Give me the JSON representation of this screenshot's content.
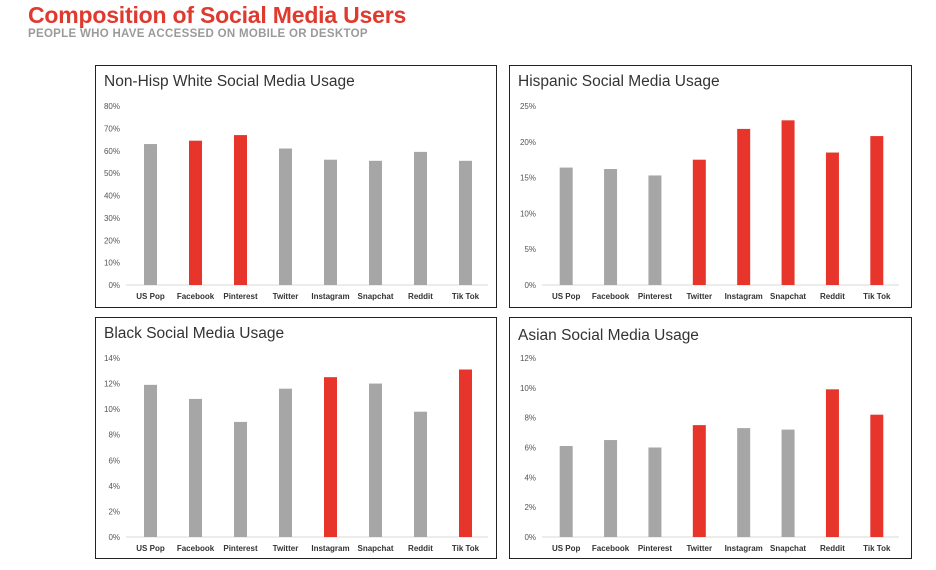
{
  "header": {
    "title": "Composition of Social Media Users",
    "subtitle": "PEOPLE WHO HAVE ACCESSED ON MOBILE OR DESKTOP"
  },
  "colors": {
    "highlight": "#e8352b",
    "neutral": "#a6a6a6",
    "title": "#e03a2f"
  },
  "chart_data": [
    {
      "type": "bar",
      "title": "Non-Hisp White Social Media Usage",
      "categories": [
        "US Pop",
        "Facebook",
        "Pinterest",
        "Twitter",
        "Instagram",
        "Snapchat",
        "Reddit",
        "Tik Tok"
      ],
      "values": [
        63,
        64.5,
        67,
        61,
        56,
        55.5,
        59.5,
        55.5
      ],
      "highlighted": [
        false,
        true,
        true,
        false,
        false,
        false,
        false,
        false
      ],
      "ylim": [
        0,
        80
      ],
      "yticks": [
        "0%",
        "10%",
        "20%",
        "30%",
        "40%",
        "50%",
        "60%",
        "70%",
        "80%"
      ],
      "grid": false
    },
    {
      "type": "bar",
      "title": "Hispanic Social Media Usage",
      "categories": [
        "US Pop",
        "Facebook",
        "Pinterest",
        "Twitter",
        "Instagram",
        "Snapchat",
        "Reddit",
        "Tik Tok"
      ],
      "values": [
        16.4,
        16.2,
        15.3,
        17.5,
        21.8,
        23,
        18.5,
        20.8
      ],
      "highlighted": [
        false,
        false,
        false,
        true,
        true,
        true,
        true,
        true
      ],
      "ylim": [
        0,
        25
      ],
      "yticks": [
        "0%",
        "5%",
        "10%",
        "15%",
        "20%",
        "25%"
      ],
      "grid": false
    },
    {
      "type": "bar",
      "title": "Black Social Media Usage",
      "categories": [
        "US Pop",
        "Facebook",
        "Pinterest",
        "Twitter",
        "Instagram",
        "Snapchat",
        "Reddit",
        "Tik Tok"
      ],
      "values": [
        11.9,
        10.8,
        9,
        11.6,
        12.5,
        12,
        9.8,
        13.1
      ],
      "highlighted": [
        false,
        false,
        false,
        false,
        true,
        false,
        false,
        true
      ],
      "ylim": [
        0,
        14
      ],
      "yticks": [
        "0%",
        "2%",
        "4%",
        "6%",
        "8%",
        "10%",
        "12%",
        "14%"
      ],
      "grid": false
    },
    {
      "type": "bar",
      "title": "Asian Social Media Usage",
      "categories": [
        "US Pop",
        "Facebook",
        "Pinterest",
        "Twitter",
        "Instagram",
        "Snapchat",
        "Reddit",
        "Tik Tok"
      ],
      "values": [
        6.1,
        6.5,
        6,
        7.5,
        7.3,
        7.2,
        9.9,
        8.2
      ],
      "highlighted": [
        false,
        false,
        false,
        true,
        false,
        false,
        true,
        true
      ],
      "ylim": [
        0,
        12
      ],
      "yticks": [
        "0%",
        "2%",
        "4%",
        "6%",
        "8%",
        "10%",
        "12%"
      ],
      "grid": false
    }
  ]
}
